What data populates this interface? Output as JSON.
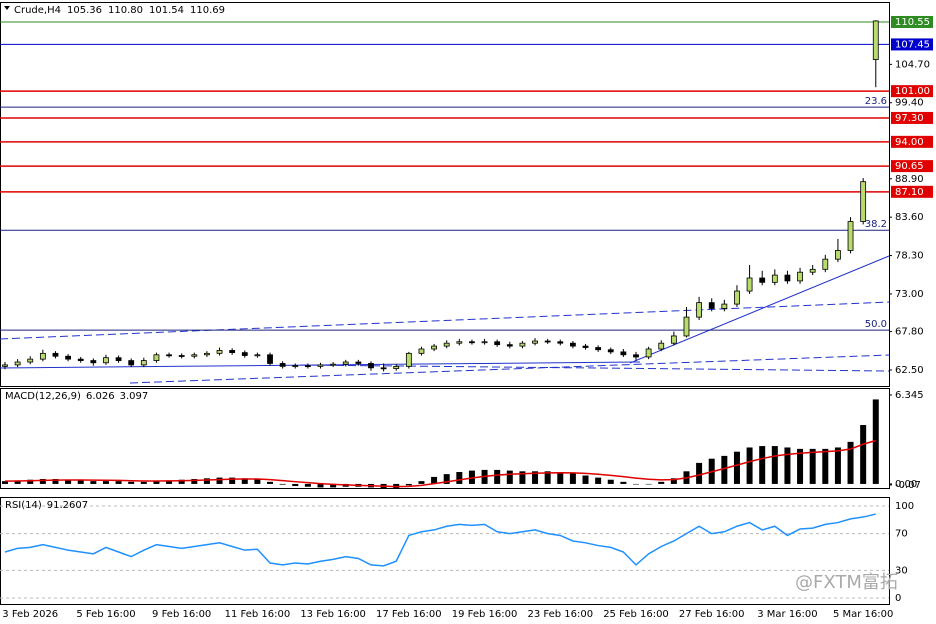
{
  "chart_data": [
    {
      "type": "candlestick",
      "title": "Crude,H4",
      "title_values": [
        {
          "value": 105.36,
          "label": "105.36"
        },
        {
          "value": 110.8,
          "label": "110.80"
        },
        {
          "value": 101.54,
          "label": "101.54"
        },
        {
          "value": 110.69,
          "label": "110.69"
        }
      ],
      "categories": [
        null,
        null,
        "3 Feb 2026",
        null,
        null,
        null,
        null,
        null,
        "5 Feb 16:00",
        null,
        null,
        null,
        null,
        null,
        "9 Feb 16:00",
        null,
        null,
        null,
        null,
        null,
        "11 Feb 16:00",
        null,
        null,
        null,
        null,
        null,
        "13 Feb 16:00",
        null,
        null,
        null,
        null,
        null,
        "17 Feb 16:00",
        null,
        null,
        null,
        null,
        null,
        "19 Feb 16:00",
        null,
        null,
        null,
        null,
        null,
        "23 Feb 16:00",
        null,
        null,
        null,
        null,
        null,
        "25 Feb 16:00",
        null,
        null,
        null,
        null,
        null,
        "27 Feb 16:00",
        null,
        null,
        null,
        null,
        null,
        "3 Mar 16:00",
        null,
        null,
        null,
        null,
        null,
        "5 Mar 16:00",
        null
      ],
      "open": [
        63.0,
        63.2,
        63.6,
        64.0,
        64.8,
        64.4,
        64.0,
        63.8,
        63.5,
        64.2,
        63.8,
        63.2,
        63.8,
        64.6,
        64.5,
        64.4,
        64.6,
        64.8,
        65.2,
        64.9,
        64.5,
        64.6,
        63.4,
        63.0,
        63.1,
        63.0,
        63.2,
        63.3,
        63.6,
        63.4,
        62.8,
        62.7,
        63.0,
        64.8,
        65.4,
        65.8,
        66.2,
        66.4,
        66.3,
        66.4,
        66.0,
        65.8,
        66.2,
        66.5,
        66.4,
        66.2,
        65.8,
        65.6,
        65.3,
        65.0,
        64.6,
        64.3,
        65.4,
        66.2,
        67.2,
        69.8,
        71.8,
        71.0,
        71.6,
        73.4,
        75.2,
        74.6,
        75.6,
        74.8,
        76.0,
        76.4,
        77.8,
        79.0,
        83.0,
        105.36
      ],
      "high": [
        63.6,
        64.0,
        64.4,
        65.3,
        65.1,
        64.7,
        64.3,
        64.1,
        64.6,
        64.5,
        64.1,
        64.2,
        64.9,
        64.9,
        64.8,
        64.9,
        65.1,
        65.6,
        65.5,
        65.2,
        64.9,
        64.9,
        63.7,
        63.4,
        63.4,
        63.5,
        63.6,
        63.9,
        63.9,
        63.7,
        63.4,
        63.3,
        65.0,
        65.7,
        66.1,
        66.6,
        66.8,
        66.7,
        66.8,
        66.7,
        66.4,
        66.5,
        66.9,
        66.8,
        66.7,
        66.5,
        66.1,
        65.9,
        65.6,
        65.4,
        65.0,
        65.7,
        66.6,
        67.8,
        71.2,
        72.6,
        72.4,
        72.2,
        74.2,
        77.0,
        76.2,
        76.4,
        76.2,
        76.6,
        77.0,
        78.4,
        80.6,
        83.6,
        89.0,
        110.8
      ],
      "low": [
        62.6,
        62.9,
        63.3,
        63.7,
        64.1,
        63.7,
        63.5,
        63.1,
        63.2,
        63.5,
        62.9,
        62.9,
        63.5,
        64.2,
        64.1,
        64.1,
        64.3,
        64.5,
        64.6,
        64.2,
        64.2,
        63.1,
        62.7,
        62.7,
        62.7,
        62.7,
        62.9,
        63.0,
        63.1,
        62.4,
        62.3,
        62.4,
        62.7,
        64.5,
        65.1,
        65.5,
        65.9,
        66.0,
        66.0,
        65.7,
        65.5,
        65.5,
        65.9,
        66.1,
        65.9,
        65.5,
        65.3,
        65.0,
        64.7,
        64.3,
        63.8,
        64.0,
        65.1,
        65.9,
        67.0,
        69.4,
        70.6,
        70.6,
        71.2,
        73.0,
        74.2,
        74.2,
        74.4,
        74.4,
        75.6,
        76.0,
        77.4,
        78.6,
        82.6,
        101.54
      ],
      "close": [
        63.2,
        63.6,
        64.0,
        64.8,
        64.4,
        64.0,
        63.8,
        63.5,
        64.2,
        63.8,
        63.2,
        63.8,
        64.6,
        64.5,
        64.4,
        64.6,
        64.8,
        65.2,
        64.9,
        64.5,
        64.6,
        63.4,
        63.0,
        63.1,
        63.0,
        63.2,
        63.3,
        63.6,
        63.4,
        62.8,
        62.7,
        63.0,
        64.8,
        65.4,
        65.8,
        66.2,
        66.4,
        66.3,
        66.4,
        66.0,
        65.8,
        66.2,
        66.5,
        66.4,
        66.2,
        65.8,
        65.6,
        65.3,
        65.0,
        64.6,
        64.3,
        65.4,
        66.2,
        67.2,
        69.8,
        71.8,
        71.0,
        71.6,
        73.4,
        75.2,
        74.6,
        75.6,
        74.8,
        76.0,
        76.4,
        77.8,
        79.0,
        83.0,
        88.5,
        110.69
      ],
      "up_color": "#b8db6e",
      "down_color": "#000000",
      "ylim": [
        60.29,
        113.17
      ],
      "yticks": [
        {
          "value": 62.5,
          "label": "62.50"
        },
        {
          "value": 67.8,
          "label": "67.80"
        },
        {
          "value": 73.0,
          "label": "73.00"
        },
        {
          "value": 78.3,
          "label": "78.30"
        },
        {
          "value": 83.6,
          "label": "83.60"
        },
        {
          "value": 88.9,
          "label": "88.90"
        },
        {
          "value": 99.4,
          "label": "99.40"
        },
        {
          "value": 104.7,
          "label": "104.70"
        }
      ],
      "levels": [
        {
          "value": 110.55,
          "label": "110.55",
          "color": "#2e8b22"
        },
        {
          "value": 107.45,
          "label": "107.45",
          "color": "#0000cd"
        },
        {
          "value": 101.0,
          "label": "101.00",
          "color": "#e00000"
        },
        {
          "value": 97.3,
          "label": "97.30",
          "color": "#e00000"
        },
        {
          "value": 94.0,
          "label": "94.00",
          "color": "#e00000"
        },
        {
          "value": 90.65,
          "label": "90.65",
          "color": "#e00000"
        },
        {
          "value": 87.1,
          "label": "87.10",
          "color": "#e00000"
        }
      ],
      "fib_levels": [
        {
          "label": "23.6",
          "value": 98.8
        },
        {
          "label": "38.2",
          "value": 81.8
        },
        {
          "label": "50.0",
          "value": 68.0
        }
      ],
      "fib_color": "#1a237e"
    },
    {
      "type": "bar",
      "title": "MACD(12,26,9)",
      "values": [
        0.2,
        0.25,
        0.3,
        0.35,
        0.35,
        0.3,
        0.25,
        0.2,
        0.2,
        0.2,
        0.15,
        0.15,
        0.2,
        0.25,
        0.3,
        0.35,
        0.4,
        0.45,
        0.45,
        0.4,
        0.35,
        0.15,
        -0.05,
        -0.15,
        -0.2,
        -0.25,
        -0.25,
        -0.2,
        -0.2,
        -0.25,
        -0.3,
        -0.3,
        -0.1,
        0.2,
        0.5,
        0.7,
        0.85,
        0.95,
        1.0,
        1.0,
        0.95,
        0.9,
        0.9,
        0.9,
        0.85,
        0.75,
        0.6,
        0.45,
        0.3,
        0.15,
        0.0,
        0.0,
        0.15,
        0.4,
        0.9,
        1.5,
        1.8,
        2.0,
        2.3,
        2.6,
        2.7,
        2.7,
        2.6,
        2.5,
        2.5,
        2.5,
        2.6,
        3.0,
        4.2,
        6.026
      ],
      "signal": [
        0.2,
        0.21,
        0.23,
        0.25,
        0.27,
        0.28,
        0.28,
        0.27,
        0.26,
        0.25,
        0.23,
        0.21,
        0.21,
        0.22,
        0.23,
        0.25,
        0.28,
        0.31,
        0.34,
        0.35,
        0.35,
        0.31,
        0.24,
        0.16,
        0.09,
        0.02,
        -0.03,
        -0.07,
        -0.1,
        -0.13,
        -0.16,
        -0.19,
        -0.17,
        -0.1,
        0.02,
        0.15,
        0.29,
        0.42,
        0.54,
        0.63,
        0.69,
        0.73,
        0.76,
        0.79,
        0.8,
        0.79,
        0.75,
        0.69,
        0.61,
        0.52,
        0.41,
        0.33,
        0.29,
        0.31,
        0.43,
        0.64,
        0.87,
        1.1,
        1.34,
        1.59,
        1.81,
        1.99,
        2.11,
        2.19,
        2.25,
        2.3,
        2.36,
        2.49,
        2.83,
        3.097
      ],
      "color": "#000000",
      "signal_color": "#e00000",
      "ylim": [
        -0.29,
        6.77
      ],
      "yticks": [
        6.345,
        {
          "value": 0,
          "label": "0.00"
        },
        -0.07
      ]
    },
    {
      "type": "line",
      "title": "RSI(14)",
      "values": [
        50,
        54,
        55,
        58,
        55,
        52,
        50,
        48,
        55,
        50,
        45,
        52,
        58,
        56,
        54,
        56,
        58,
        60,
        56,
        52,
        53,
        38,
        36,
        38,
        37,
        40,
        42,
        45,
        43,
        36,
        35,
        40,
        68,
        72,
        74,
        78,
        80,
        79,
        80,
        72,
        70,
        72,
        74,
        70,
        68,
        62,
        60,
        57,
        55,
        50,
        36,
        48,
        56,
        62,
        70,
        78,
        70,
        72,
        78,
        82,
        74,
        78,
        68,
        75,
        76,
        80,
        82,
        86,
        88,
        91.2607
      ],
      "color": "#1e90ff",
      "ylim": [
        -6.5,
        108.7
      ],
      "yticks": [
        100,
        70,
        30,
        0
      ]
    }
  ],
  "watermark": "@FXTM富拓"
}
